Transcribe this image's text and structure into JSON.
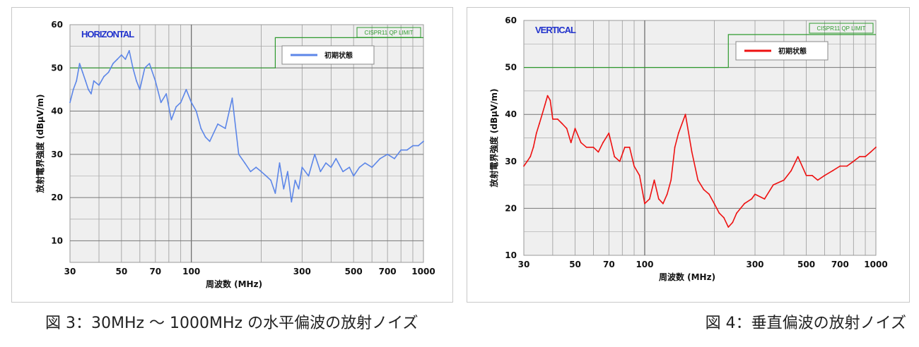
{
  "captions": {
    "left": "図 3：30MHz ～ 1000MHz の水平偏波の放射ノイズ",
    "right": "図 4：垂直偏波の放射ノイズ"
  },
  "chart_data": [
    {
      "type": "line",
      "xscale": "log",
      "xlim": [
        30,
        1000
      ],
      "ylim": [
        5,
        60
      ],
      "xticks": [
        30,
        50,
        70,
        100,
        300,
        500,
        700,
        1000
      ],
      "yticks": [
        10,
        20,
        30,
        40,
        50,
        60
      ],
      "xlabel": "周波数 (MHz)",
      "ylabel": "放射電界強度 (dBµV/m)",
      "grid": true,
      "inner_label": "HORIZONTAL",
      "inner_label_color": "#2233cc",
      "limit": {
        "name": "CISPR11 QP LIMIT",
        "color": "#2e9a2e",
        "x": [
          30,
          230,
          230,
          1000
        ],
        "y": [
          50,
          50,
          57,
          57
        ]
      },
      "legend_placement": "top-right",
      "series": [
        {
          "name": "初期状態",
          "color": "#5c86e8",
          "x": [
            30,
            31,
            32,
            33,
            34,
            35,
            36,
            37,
            38,
            40,
            42,
            44,
            46,
            48,
            50,
            52,
            54,
            56,
            58,
            60,
            63,
            66,
            70,
            74,
            78,
            82,
            86,
            90,
            95,
            100,
            105,
            110,
            115,
            120,
            130,
            140,
            150,
            160,
            170,
            180,
            190,
            200,
            210,
            220,
            230,
            240,
            250,
            260,
            270,
            280,
            290,
            300,
            320,
            340,
            360,
            380,
            400,
            420,
            450,
            480,
            500,
            530,
            560,
            600,
            650,
            700,
            750,
            800,
            850,
            900,
            950,
            1000
          ],
          "y": [
            42,
            45,
            47,
            51,
            49,
            47,
            45,
            44,
            47,
            46,
            48,
            49,
            51,
            52,
            53,
            52,
            54,
            50,
            47,
            45,
            50,
            51,
            47,
            42,
            44,
            38,
            41,
            42,
            45,
            42,
            40,
            36,
            34,
            33,
            37,
            36,
            43,
            30,
            28,
            26,
            27,
            26,
            25,
            24,
            21,
            28,
            22,
            26,
            19,
            24,
            22,
            27,
            25,
            30,
            26,
            28,
            27,
            29,
            26,
            27,
            25,
            27,
            28,
            27,
            29,
            30,
            29,
            31,
            31,
            32,
            32,
            33
          ]
        }
      ]
    },
    {
      "type": "line",
      "xscale": "log",
      "xlim": [
        30,
        1000
      ],
      "ylim": [
        10,
        60
      ],
      "xticks": [
        30,
        50,
        70,
        100,
        300,
        500,
        700,
        1000
      ],
      "yticks": [
        10,
        20,
        30,
        40,
        50,
        60
      ],
      "xlabel": "周波数 (MHz)",
      "ylabel": "放射電界強度 (dBµV/m)",
      "grid": true,
      "inner_label": "VERTICAL",
      "inner_label_color": "#2233cc",
      "limit": {
        "name": "CISPR11 QP LIMIT",
        "color": "#2e9a2e",
        "x": [
          30,
          230,
          230,
          1000
        ],
        "y": [
          50,
          50,
          57,
          57
        ]
      },
      "legend_placement": "top-right",
      "series": [
        {
          "name": "初期状態",
          "color": "#ee1111",
          "x": [
            30,
            31,
            32,
            33,
            34,
            35,
            36,
            37,
            38,
            39,
            40,
            42,
            44,
            46,
            48,
            50,
            53,
            56,
            60,
            63,
            66,
            70,
            74,
            78,
            82,
            86,
            90,
            95,
            100,
            105,
            110,
            115,
            120,
            125,
            130,
            135,
            140,
            150,
            160,
            170,
            180,
            190,
            200,
            210,
            220,
            230,
            240,
            250,
            270,
            290,
            300,
            330,
            360,
            400,
            430,
            460,
            500,
            530,
            560,
            600,
            650,
            700,
            750,
            800,
            850,
            900,
            950,
            1000
          ],
          "y": [
            29,
            30,
            31,
            33,
            36,
            38,
            40,
            42,
            44,
            43,
            39,
            39,
            38,
            37,
            34,
            37,
            34,
            33,
            33,
            32,
            34,
            36,
            31,
            30,
            33,
            33,
            29,
            27,
            21,
            22,
            26,
            22,
            21,
            23,
            26,
            33,
            36,
            40,
            32,
            26,
            24,
            23,
            21,
            19,
            18,
            16,
            17,
            19,
            21,
            22,
            23,
            22,
            25,
            26,
            28,
            31,
            27,
            27,
            26,
            27,
            28,
            29,
            29,
            30,
            31,
            31,
            32,
            33
          ]
        }
      ]
    }
  ]
}
